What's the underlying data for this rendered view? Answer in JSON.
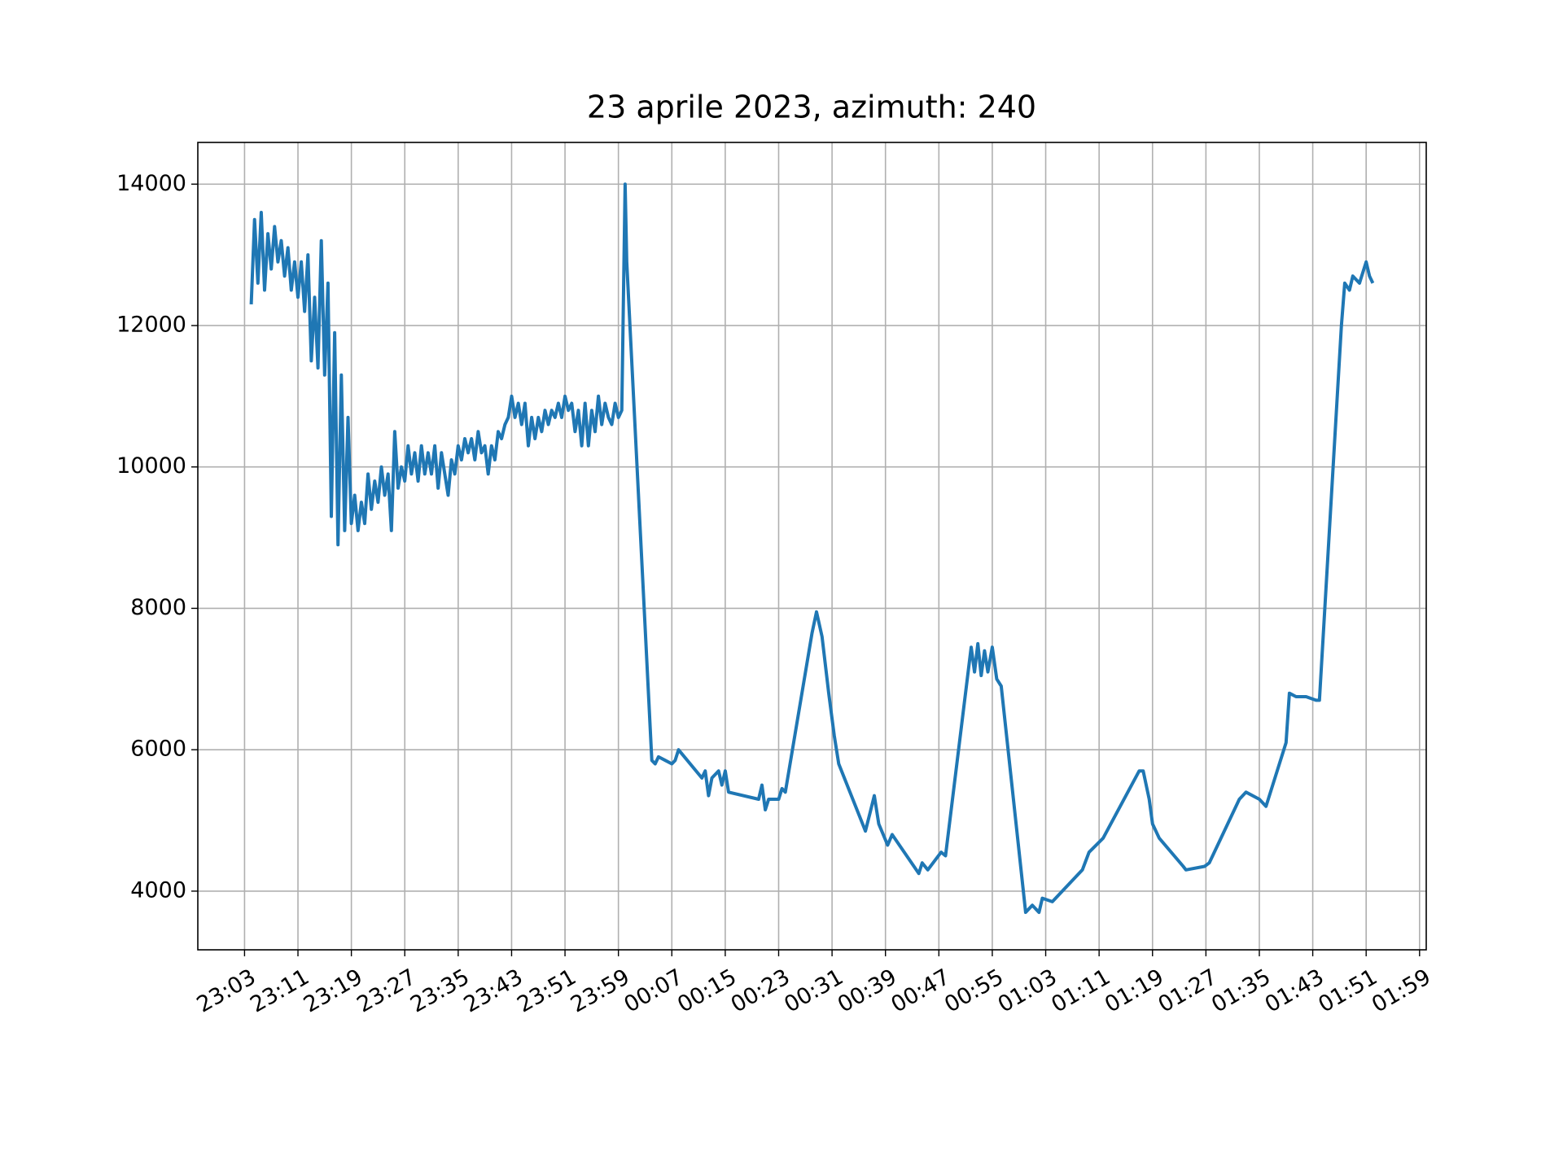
{
  "chart_data": {
    "type": "line",
    "title": "23 aprile 2023, azimuth: 240",
    "color": "#1f77b4",
    "grid": true,
    "xlim": [
      "22:56",
      "02:00"
    ],
    "xticks": [
      "23:03",
      "23:11",
      "23:19",
      "23:27",
      "23:35",
      "23:43",
      "23:51",
      "23:59",
      "00:07",
      "00:15",
      "00:23",
      "00:31",
      "00:39",
      "00:47",
      "00:55",
      "01:03",
      "01:11",
      "01:19",
      "01:27",
      "01:35",
      "01:43",
      "01:51",
      "01:59"
    ],
    "ylim": [
      3170,
      14590
    ],
    "yticks": [
      4000,
      6000,
      8000,
      10000,
      12000,
      14000
    ],
    "x": [
      "23:04:00",
      "23:04:30",
      "23:05:00",
      "23:05:30",
      "23:06:00",
      "23:06:30",
      "23:07:00",
      "23:07:30",
      "23:08:00",
      "23:08:30",
      "23:09:00",
      "23:09:30",
      "23:10:00",
      "23:10:30",
      "23:11:00",
      "23:11:30",
      "23:12:00",
      "23:12:30",
      "23:13:00",
      "23:13:30",
      "23:14:00",
      "23:14:30",
      "23:15:00",
      "23:15:30",
      "23:16:00",
      "23:16:30",
      "23:17:00",
      "23:17:30",
      "23:18:00",
      "23:18:30",
      "23:19:00",
      "23:19:30",
      "23:20:00",
      "23:20:30",
      "23:21:00",
      "23:21:30",
      "23:22:00",
      "23:22:30",
      "23:23:00",
      "23:23:30",
      "23:24:00",
      "23:24:30",
      "23:25:00",
      "23:25:30",
      "23:26:00",
      "23:26:30",
      "23:27:00",
      "23:27:30",
      "23:28:00",
      "23:28:30",
      "23:29:00",
      "23:29:30",
      "23:30:00",
      "23:30:30",
      "23:31:00",
      "23:31:30",
      "23:32:00",
      "23:32:30",
      "23:33:00",
      "23:33:30",
      "23:34:00",
      "23:34:30",
      "23:35:00",
      "23:35:30",
      "23:36:00",
      "23:36:30",
      "23:37:00",
      "23:37:30",
      "23:38:00",
      "23:38:30",
      "23:39:00",
      "23:39:30",
      "23:40:00",
      "23:40:30",
      "23:41:00",
      "23:41:30",
      "23:42:00",
      "23:42:30",
      "23:43:00",
      "23:43:30",
      "23:44:00",
      "23:44:30",
      "23:45:00",
      "23:45:30",
      "23:46:00",
      "23:46:30",
      "23:47:00",
      "23:47:30",
      "23:48:00",
      "23:48:30",
      "23:49:00",
      "23:49:30",
      "23:50:00",
      "23:50:30",
      "23:51:00",
      "23:51:30",
      "23:52:00",
      "23:52:30",
      "23:53:00",
      "23:53:30",
      "23:54:00",
      "23:54:30",
      "23:55:00",
      "23:55:30",
      "23:56:00",
      "23:56:30",
      "23:57:00",
      "23:57:30",
      "23:58:00",
      "23:58:30",
      "23:59:00",
      "23:59:30",
      "00:00:00",
      "00:00:15",
      "00:04:00",
      "00:04:30",
      "00:05:00",
      "00:06:00",
      "00:07:00",
      "00:07:30",
      "00:08:00",
      "00:11:30",
      "00:12:00",
      "00:12:30",
      "00:13:00",
      "00:14:00",
      "00:14:30",
      "00:15:00",
      "00:15:30",
      "00:20:00",
      "00:20:30",
      "00:21:00",
      "00:21:30",
      "00:23:00",
      "00:23:30",
      "00:24:00",
      "00:28:00",
      "00:28:40",
      "00:29:30",
      "00:30:30",
      "00:31:20",
      "00:32:00",
      "00:36:00",
      "00:36:40",
      "00:37:20",
      "00:38:00",
      "00:39:20",
      "00:40:00",
      "00:44:00",
      "00:44:30",
      "00:45:20",
      "00:47:20",
      "00:48:00",
      "00:51:50",
      "00:52:20",
      "00:52:50",
      "00:53:20",
      "00:53:50",
      "00:54:20",
      "00:55:00",
      "00:55:40",
      "00:56:20",
      "01:00:00",
      "01:01:00",
      "01:02:00",
      "01:02:30",
      "01:04:00",
      "01:08:30",
      "01:09:30",
      "01:11:36",
      "01:17:00",
      "01:17:36",
      "01:18:30",
      "01:19:00",
      "01:20:00",
      "01:23:36",
      "01:24:00",
      "01:26:48",
      "01:27:30",
      "01:28:00",
      "01:32:00",
      "01:33:00",
      "01:35:00",
      "01:36:00",
      "01:39:00",
      "01:39:30",
      "01:40:30",
      "01:42:00",
      "01:43:30",
      "01:44:00",
      "01:47:18",
      "01:47:48",
      "01:48:30",
      "01:49:00",
      "01:50:00",
      "01:51:00",
      "01:51:30",
      "01:52:00"
    ],
    "values": [
      12300,
      13500,
      12600,
      13600,
      12500,
      13300,
      12800,
      13400,
      12900,
      13200,
      12700,
      13100,
      12500,
      12900,
      12400,
      12900,
      12200,
      13000,
      11500,
      12400,
      11400,
      13200,
      11300,
      12600,
      9300,
      11900,
      8900,
      11300,
      9100,
      10700,
      9200,
      9600,
      9100,
      9500,
      9200,
      9900,
      9400,
      9800,
      9500,
      10000,
      9600,
      9900,
      9100,
      10500,
      9700,
      10000,
      9800,
      10300,
      9900,
      10200,
      9800,
      10300,
      9900,
      10200,
      9900,
      10300,
      9700,
      10200,
      9900,
      9600,
      10100,
      9900,
      10300,
      10100,
      10400,
      10200,
      10400,
      10100,
      10500,
      10200,
      10300,
      9900,
      10300,
      10100,
      10500,
      10400,
      10600,
      10700,
      11000,
      10700,
      10900,
      10600,
      10900,
      10300,
      10700,
      10400,
      10700,
      10500,
      10800,
      10600,
      10800,
      10700,
      10900,
      10700,
      11000,
      10800,
      10900,
      10500,
      10800,
      10300,
      10900,
      10300,
      10800,
      10500,
      11000,
      10600,
      10900,
      10700,
      10600,
      10900,
      10700,
      10800,
      14000,
      12900,
      5850,
      5800,
      5900,
      5850,
      5800,
      5850,
      6000,
      5600,
      5700,
      5350,
      5600,
      5700,
      5500,
      5700,
      5400,
      5300,
      5500,
      5150,
      5300,
      5300,
      5450,
      5400,
      7650,
      7950,
      7600,
      6800,
      6200,
      5800,
      4850,
      5100,
      5350,
      4950,
      4650,
      4800,
      4250,
      4400,
      4300,
      4550,
      4500,
      7450,
      7100,
      7500,
      7050,
      7400,
      7100,
      7450,
      7000,
      6900,
      3700,
      3800,
      3700,
      3900,
      3850,
      4300,
      4550,
      4750,
      5700,
      5700,
      5300,
      4950,
      4750,
      4350,
      4300,
      4350,
      4400,
      4500,
      5300,
      5400,
      5300,
      5200,
      6100,
      6800,
      6750,
      6750,
      6700,
      6700,
      12000,
      12600,
      12500,
      12700,
      12600,
      12900,
      12700,
      12600
    ]
  }
}
